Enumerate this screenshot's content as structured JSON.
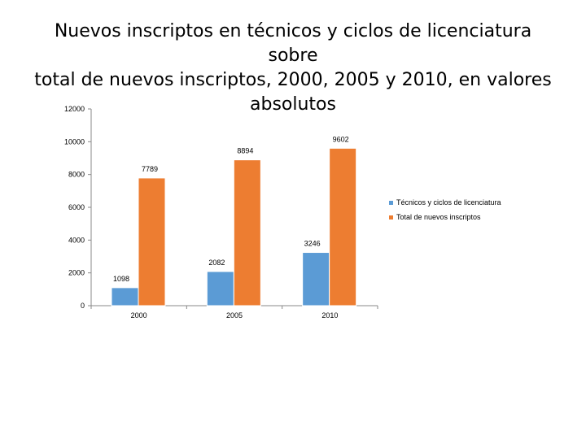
{
  "title_lines": [
    "Nuevos inscriptos en técnicos y ciclos de licenciatura sobre",
    "total de nuevos inscriptos, 2000, 2005 y 2010, en valores",
    "absolutos"
  ],
  "chart_data": {
    "type": "bar",
    "title": "Nuevos inscriptos en técnicos y ciclos de licenciatura sobre total de nuevos inscriptos, 2000, 2005 y 2010, en valores absolutos",
    "categories": [
      "2000",
      "2005",
      "2010"
    ],
    "series": [
      {
        "name": "Técnicos y ciclos de licenciatura",
        "values": [
          1098,
          2082,
          3246
        ],
        "color": "#5B9BD5"
      },
      {
        "name": "Total de nuevos inscriptos",
        "values": [
          7789,
          8894,
          9602
        ],
        "color": "#ED7D31"
      }
    ],
    "ylim": [
      0,
      12000
    ],
    "yticks": [
      "12000",
      "10000",
      "8000",
      "6000",
      "4000",
      "2000",
      "0"
    ],
    "data_labels": [
      "1098",
      "2082",
      "3246",
      "7789",
      "8894",
      "9602"
    ],
    "grid": false,
    "legend_position": "right"
  }
}
